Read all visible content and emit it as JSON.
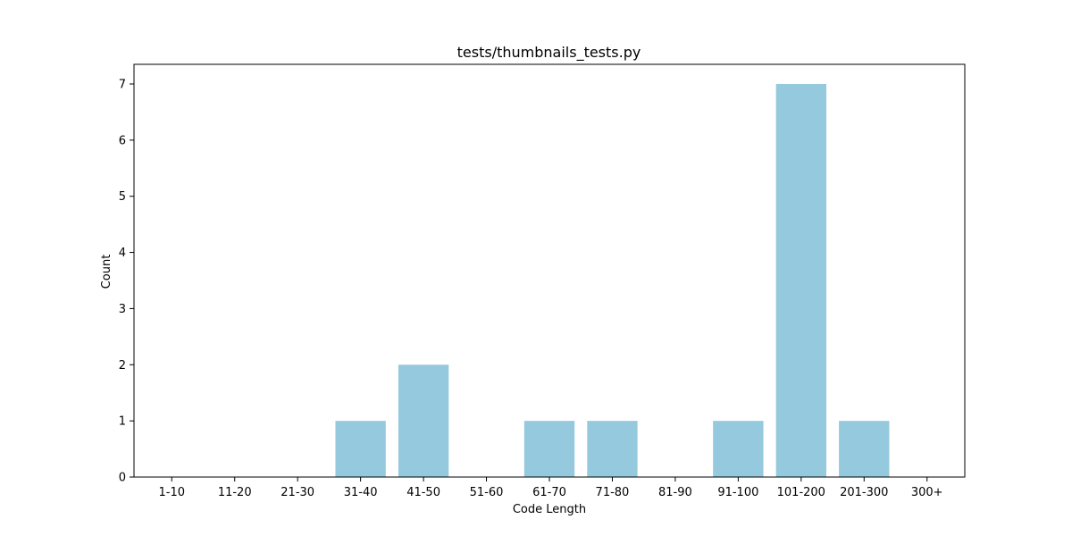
{
  "chart_data": {
    "type": "bar",
    "title": "tests/thumbnails_tests.py",
    "xlabel": "Code Length",
    "ylabel": "Count",
    "categories": [
      "1-10",
      "11-20",
      "21-30",
      "31-40",
      "41-50",
      "51-60",
      "61-70",
      "71-80",
      "81-90",
      "91-100",
      "101-200",
      "201-300",
      "300+"
    ],
    "values": [
      0,
      0,
      0,
      1,
      2,
      0,
      1,
      1,
      0,
      1,
      7,
      1,
      0
    ],
    "ylim": [
      0,
      7.35
    ],
    "yticks": [
      0,
      1,
      2,
      3,
      4,
      5,
      6,
      7
    ],
    "bar_color": "#95c9dd",
    "grid": false,
    "legend": "none"
  }
}
